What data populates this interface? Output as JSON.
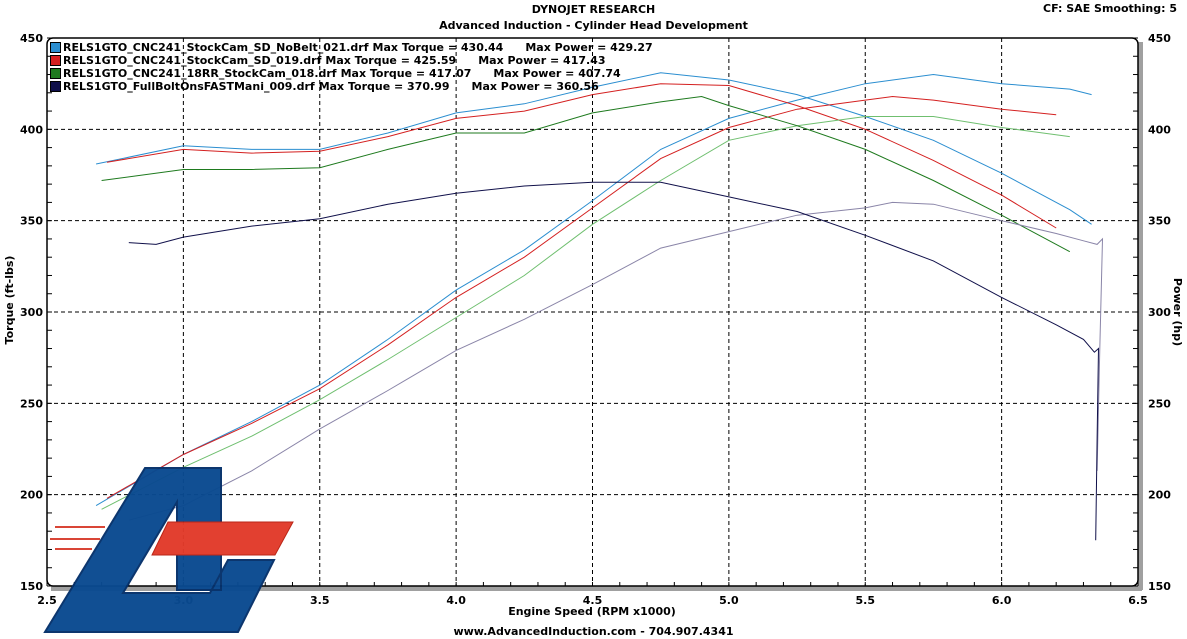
{
  "header": {
    "company": "DYNOJET RESEARCH",
    "subtitle": "Advanced Induction - Cylinder Head Development",
    "settings": "CF: SAE  Smoothing: 5"
  },
  "footer": {
    "text": "www.AdvancedInduction.com  -  704.907.4341"
  },
  "colors": {
    "blue": "#2b8ed0",
    "red": "#d42020",
    "green": "#1e7a1e",
    "navy": "#10104a",
    "gray_power": "#8a85a8",
    "green_power": "#6fbf6f"
  },
  "chart_data": {
    "type": "line",
    "title": "Advanced Induction - Cylinder Head Development",
    "xlabel": "Engine Speed (RPM x1000)",
    "ylabel": "Torque (ft-lbs)",
    "y2label": "Power (hp)",
    "xlim": [
      2.5,
      6.5
    ],
    "ylim": [
      150,
      450
    ],
    "y2lim": [
      150,
      450
    ],
    "xticks": [
      "2.5",
      "3.0",
      "3.5",
      "4.0",
      "4.5",
      "5.0",
      "5.5",
      "6.0",
      "6.5"
    ],
    "yticks": [
      "150",
      "200",
      "250",
      "300",
      "350",
      "400",
      "450"
    ],
    "grid": true,
    "legend_position": "top-left",
    "series": [
      {
        "name": "RELS1GTO_CNC241_StockCam_SD_NoBelt_021.drf",
        "max_torque_label": "Max Torque = 430.44",
        "max_power_label": "Max Power = 429.27",
        "color": "#2b8ed0",
        "power_color": "#2b8ed0",
        "torque": [
          [
            2.68,
            381
          ],
          [
            3.0,
            391
          ],
          [
            3.25,
            389
          ],
          [
            3.5,
            389
          ],
          [
            3.75,
            398
          ],
          [
            4.0,
            409
          ],
          [
            4.25,
            414
          ],
          [
            4.5,
            423
          ],
          [
            4.75,
            431
          ],
          [
            5.0,
            427
          ],
          [
            5.25,
            419
          ],
          [
            5.5,
            407
          ],
          [
            5.75,
            394
          ],
          [
            6.0,
            376
          ],
          [
            6.25,
            356
          ],
          [
            6.33,
            348
          ]
        ],
        "power": [
          [
            2.68,
            194
          ],
          [
            3.0,
            222
          ],
          [
            3.25,
            240
          ],
          [
            3.5,
            260
          ],
          [
            3.75,
            285
          ],
          [
            4.0,
            312
          ],
          [
            4.25,
            334
          ],
          [
            4.5,
            361
          ],
          [
            4.75,
            389
          ],
          [
            5.0,
            406
          ],
          [
            5.25,
            416
          ],
          [
            5.5,
            425
          ],
          [
            5.75,
            430
          ],
          [
            6.0,
            425
          ],
          [
            6.25,
            422
          ],
          [
            6.33,
            419
          ]
        ]
      },
      {
        "name": "RELS1GTO_CNC241_StockCam_SD_019.drf",
        "max_torque_label": "Max Torque = 425.59",
        "max_power_label": "Max Power = 417.43",
        "color": "#d42020",
        "power_color": "#d42020",
        "torque": [
          [
            2.72,
            382
          ],
          [
            3.0,
            389
          ],
          [
            3.25,
            387
          ],
          [
            3.5,
            388
          ],
          [
            3.75,
            396
          ],
          [
            4.0,
            406
          ],
          [
            4.25,
            410
          ],
          [
            4.5,
            419
          ],
          [
            4.75,
            425
          ],
          [
            5.0,
            424
          ],
          [
            5.25,
            413
          ],
          [
            5.5,
            400
          ],
          [
            5.75,
            383
          ],
          [
            6.0,
            364
          ],
          [
            6.2,
            346
          ]
        ],
        "power": [
          [
            2.72,
            198
          ],
          [
            3.0,
            222
          ],
          [
            3.25,
            239
          ],
          [
            3.5,
            258
          ],
          [
            3.75,
            282
          ],
          [
            4.0,
            308
          ],
          [
            4.25,
            330
          ],
          [
            4.5,
            357
          ],
          [
            4.75,
            384
          ],
          [
            5.0,
            401
          ],
          [
            5.25,
            411
          ],
          [
            5.5,
            416
          ],
          [
            5.6,
            418
          ],
          [
            5.75,
            416
          ],
          [
            6.0,
            411
          ],
          [
            6.2,
            408
          ]
        ]
      },
      {
        "name": "RELS1GTO_CNC241_18RR_StockCam_018.drf",
        "max_torque_label": "Max Torque = 417.07",
        "max_power_label": "Max Power = 407.74",
        "color": "#1e7a1e",
        "power_color": "#6fbf6f",
        "torque": [
          [
            2.7,
            372
          ],
          [
            3.0,
            378
          ],
          [
            3.25,
            378
          ],
          [
            3.5,
            379
          ],
          [
            3.75,
            389
          ],
          [
            4.0,
            398
          ],
          [
            4.25,
            398
          ],
          [
            4.5,
            409
          ],
          [
            4.75,
            415
          ],
          [
            4.9,
            418
          ],
          [
            5.0,
            413
          ],
          [
            5.25,
            402
          ],
          [
            5.5,
            389
          ],
          [
            5.75,
            372
          ],
          [
            6.0,
            353
          ],
          [
            6.25,
            333
          ]
        ],
        "power": [
          [
            2.7,
            192
          ],
          [
            3.0,
            215
          ],
          [
            3.25,
            232
          ],
          [
            3.5,
            252
          ],
          [
            3.75,
            274
          ],
          [
            4.0,
            297
          ],
          [
            4.25,
            320
          ],
          [
            4.5,
            348
          ],
          [
            4.75,
            372
          ],
          [
            5.0,
            394
          ],
          [
            5.25,
            402
          ],
          [
            5.5,
            407
          ],
          [
            5.75,
            407
          ],
          [
            6.0,
            401
          ],
          [
            6.25,
            396
          ]
        ]
      },
      {
        "name": "RELS1GTO_FullBoltOnsFASTMani_009.drf",
        "max_torque_label": "Max Torque = 370.99",
        "max_power_label": "Max Power = 360.56",
        "color": "#10104a",
        "power_color": "#8a85a8",
        "torque": [
          [
            2.8,
            338
          ],
          [
            2.9,
            337
          ],
          [
            3.0,
            341
          ],
          [
            3.25,
            347
          ],
          [
            3.5,
            351
          ],
          [
            3.75,
            359
          ],
          [
            4.0,
            365
          ],
          [
            4.25,
            369
          ],
          [
            4.5,
            371
          ],
          [
            4.75,
            371
          ],
          [
            5.0,
            363
          ],
          [
            5.25,
            355
          ],
          [
            5.5,
            342
          ],
          [
            5.75,
            328
          ],
          [
            6.0,
            308
          ],
          [
            6.2,
            293
          ],
          [
            6.3,
            285
          ],
          [
            6.34,
            278
          ],
          [
            6.355,
            280
          ],
          [
            6.35,
            230
          ],
          [
            6.345,
            175
          ]
        ],
        "power": [
          [
            2.8,
            186
          ],
          [
            3.0,
            194
          ],
          [
            3.25,
            213
          ],
          [
            3.5,
            236
          ],
          [
            3.75,
            257
          ],
          [
            4.0,
            279
          ],
          [
            4.25,
            296
          ],
          [
            4.5,
            315
          ],
          [
            4.75,
            335
          ],
          [
            5.0,
            344
          ],
          [
            5.25,
            353
          ],
          [
            5.5,
            357
          ],
          [
            5.6,
            360
          ],
          [
            5.75,
            359
          ],
          [
            6.0,
            350
          ],
          [
            6.2,
            343
          ],
          [
            6.3,
            339
          ],
          [
            6.35,
            337
          ],
          [
            6.37,
            340
          ],
          [
            6.36,
            280
          ],
          [
            6.35,
            213
          ]
        ]
      }
    ]
  }
}
